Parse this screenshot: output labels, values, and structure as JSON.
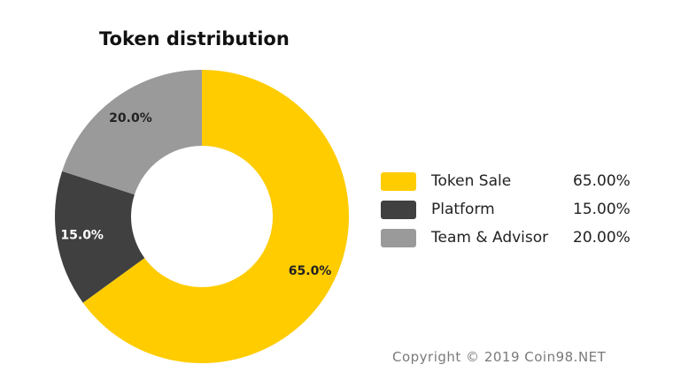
{
  "chart_data": {
    "type": "pie",
    "title": "Token distribution",
    "categories": [
      "Token Sale",
      "Platform",
      "Team & Advisor"
    ],
    "values": [
      65.0,
      15.0,
      20.0
    ],
    "slice_labels": [
      "65.0%",
      "15.0%",
      "20.0%"
    ],
    "legend_values": [
      "65.00%",
      "15.00%",
      "20.00%"
    ],
    "colors": [
      "#FFCC00",
      "#404040",
      "#9A9A9A"
    ],
    "slice_label_colors": [
      "#222222",
      "#ffffff",
      "#222222"
    ],
    "style": "donut",
    "start_angle": "12 o'clock",
    "direction": "clockwise",
    "legend_position": "right"
  },
  "copyright": "Copyright © 2019 Coin98.NET"
}
